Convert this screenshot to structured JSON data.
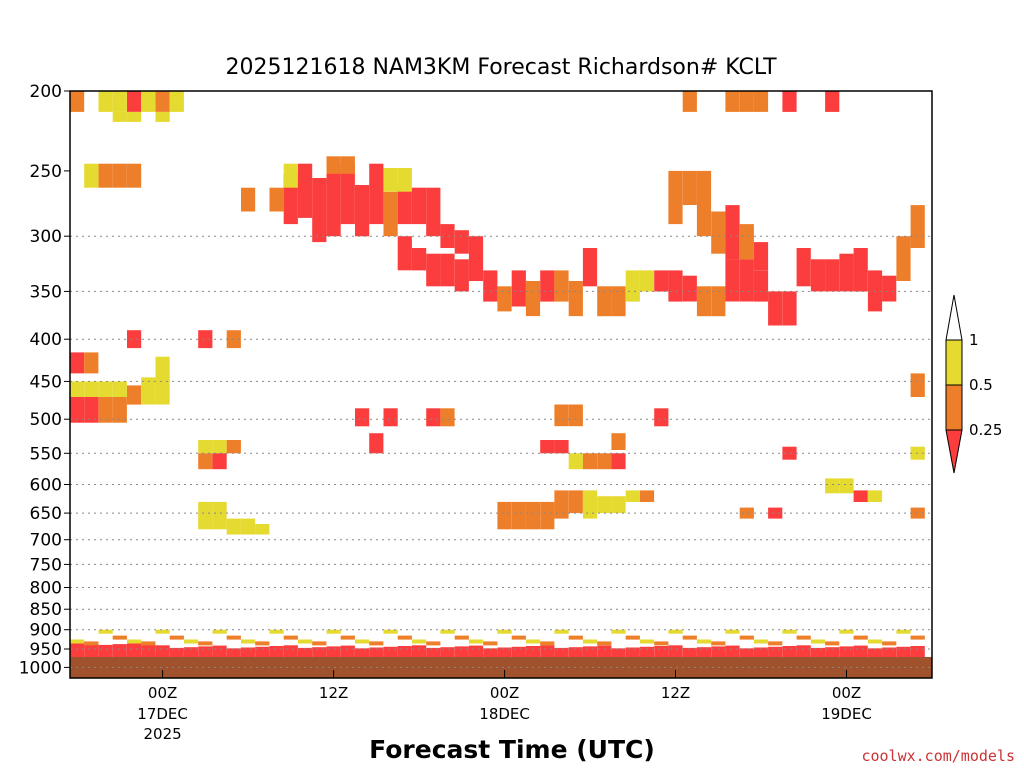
{
  "chart_data": {
    "type": "heatmap",
    "title": "2025121618 NAM3KM Forecast Richardson# KCLT",
    "xlabel": "Forecast Time (UTC)",
    "ylabel": "",
    "credit": "coolwx.com/models",
    "y_scale": "pressure (log), inverted",
    "y_ticks": [
      "200",
      "250",
      "300",
      "350",
      "400",
      "450",
      "500",
      "550",
      "600",
      "650",
      "700",
      "750",
      "800",
      "850",
      "900",
      "950",
      "1000"
    ],
    "y_range": [
      200,
      1030
    ],
    "grid": "dotted horizontal at 300, 350, 400, 450, 500, 550, 600, 650, 700, 750, 800, 850, 900, 950, 1000",
    "x_ticks": [
      {
        "label": "00Z",
        "sub": "17DEC",
        "sub2": "2025"
      },
      {
        "label": "12Z",
        "sub": "",
        "sub2": ""
      },
      {
        "label": "00Z",
        "sub": "18DEC",
        "sub2": ""
      },
      {
        "label": "12Z",
        "sub": "",
        "sub2": ""
      },
      {
        "label": "00Z",
        "sub": "19DEC",
        "sub2": ""
      }
    ],
    "x_range_hours": [
      -6.5,
      54
    ],
    "tick_hours": [
      0,
      12,
      24,
      36,
      48
    ],
    "legend": {
      "position": "right",
      "labels": [
        "1",
        "0.5",
        "0.25"
      ],
      "colors": {
        "above_1": "#ffffff",
        "0.5_to_1": "#e5da30",
        "0.25_to_0.5": "#ee7f2a",
        "below_0.25": "#fb3d3d"
      }
    },
    "colors": {
      "yellow": "#e5da30",
      "orange": "#ee7f2a",
      "red": "#fb3d3d",
      "ground": "#a0522d"
    },
    "cells": [
      {
        "h": -6,
        "p": [
          200,
          212
        ],
        "c": "o"
      },
      {
        "h": -4,
        "p": [
          200,
          212
        ],
        "c": "y"
      },
      {
        "h": -3,
        "p": [
          200,
          212
        ],
        "c": "y"
      },
      {
        "h": -2,
        "p": [
          200,
          212
        ],
        "c": "r"
      },
      {
        "h": -1,
        "p": [
          200,
          212
        ],
        "c": "y"
      },
      {
        "h": 0,
        "p": [
          200,
          212
        ],
        "c": "o"
      },
      {
        "h": 1,
        "p": [
          200,
          212
        ],
        "c": "y"
      },
      {
        "h": -3,
        "p": [
          212,
          218
        ],
        "c": "y"
      },
      {
        "h": -2,
        "p": [
          212,
          218
        ],
        "c": "y"
      },
      {
        "h": 0,
        "p": [
          212,
          218
        ],
        "c": "y"
      },
      {
        "h": -5,
        "p": [
          245,
          262
        ],
        "c": "y"
      },
      {
        "h": -4,
        "p": [
          245,
          262
        ],
        "c": "o"
      },
      {
        "h": -3,
        "p": [
          245,
          262
        ],
        "c": "o"
      },
      {
        "h": -2,
        "p": [
          245,
          262
        ],
        "c": "o"
      },
      {
        "h": 6,
        "p": [
          262,
          280
        ],
        "c": "o"
      },
      {
        "h": 8,
        "p": [
          262,
          280
        ],
        "c": "o"
      },
      {
        "h": 9,
        "p": [
          252,
          290
        ],
        "c": "r"
      },
      {
        "h": 10,
        "p": [
          245,
          285
        ],
        "c": "r"
      },
      {
        "h": 11,
        "p": [
          255,
          305
        ],
        "c": "r"
      },
      {
        "h": 12,
        "p": [
          250,
          300
        ],
        "c": "r"
      },
      {
        "h": 13,
        "p": [
          245,
          290
        ],
        "c": "r"
      },
      {
        "h": 14,
        "p": [
          260,
          300
        ],
        "c": "r"
      },
      {
        "h": 15,
        "p": [
          245,
          290
        ],
        "c": "r"
      },
      {
        "h": 16,
        "p": [
          265,
          300
        ],
        "c": "o"
      },
      {
        "h": 17,
        "p": [
          262,
          290
        ],
        "c": "r"
      },
      {
        "h": 18,
        "p": [
          262,
          290
        ],
        "c": "r"
      },
      {
        "h": 19,
        "p": [
          262,
          300
        ],
        "c": "r"
      },
      {
        "h": 9,
        "p": [
          245,
          262
        ],
        "c": "y"
      },
      {
        "h": 12,
        "p": [
          240,
          252
        ],
        "c": "o"
      },
      {
        "h": 13,
        "p": [
          240,
          252
        ],
        "c": "o"
      },
      {
        "h": 16,
        "p": [
          248,
          265
        ],
        "c": "y"
      },
      {
        "h": 17,
        "p": [
          248,
          265
        ],
        "c": "y"
      },
      {
        "h": 20,
        "p": [
          290,
          310
        ],
        "c": "r"
      },
      {
        "h": 21,
        "p": [
          295,
          315
        ],
        "c": "r"
      },
      {
        "h": 17,
        "p": [
          300,
          330
        ],
        "c": "r"
      },
      {
        "h": 18,
        "p": [
          310,
          330
        ],
        "c": "r"
      },
      {
        "h": 19,
        "p": [
          315,
          345
        ],
        "c": "r"
      },
      {
        "h": 20,
        "p": [
          315,
          345
        ],
        "c": "r"
      },
      {
        "h": 21,
        "p": [
          320,
          350
        ],
        "c": "r"
      },
      {
        "h": 22,
        "p": [
          300,
          340
        ],
        "c": "r"
      },
      {
        "h": 23,
        "p": [
          330,
          360
        ],
        "c": "r"
      },
      {
        "h": 24,
        "p": [
          345,
          370
        ],
        "c": "o"
      },
      {
        "h": 25,
        "p": [
          330,
          365
        ],
        "c": "r"
      },
      {
        "h": 26,
        "p": [
          340,
          375
        ],
        "c": "o"
      },
      {
        "h": 27,
        "p": [
          330,
          360
        ],
        "c": "r"
      },
      {
        "h": 28,
        "p": [
          330,
          360
        ],
        "c": "o"
      },
      {
        "h": 29,
        "p": [
          340,
          375
        ],
        "c": "o"
      },
      {
        "h": 30,
        "p": [
          310,
          345
        ],
        "c": "r"
      },
      {
        "h": 31,
        "p": [
          345,
          375
        ],
        "c": "o"
      },
      {
        "h": 32,
        "p": [
          345,
          375
        ],
        "c": "o"
      },
      {
        "h": 33,
        "p": [
          330,
          360
        ],
        "c": "y"
      },
      {
        "h": 34,
        "p": [
          330,
          350
        ],
        "c": "y"
      },
      {
        "h": 35,
        "p": [
          330,
          350
        ],
        "c": "r"
      },
      {
        "h": 36,
        "p": [
          330,
          360
        ],
        "c": "r"
      },
      {
        "h": 37,
        "p": [
          335,
          360
        ],
        "c": "r"
      },
      {
        "h": 38,
        "p": [
          345,
          375
        ],
        "c": "o"
      },
      {
        "h": 39,
        "p": [
          345,
          375
        ],
        "c": "o"
      },
      {
        "h": 40,
        "p": [
          320,
          360
        ],
        "c": "r"
      },
      {
        "h": 41,
        "p": [
          320,
          360
        ],
        "c": "r"
      },
      {
        "h": 42,
        "p": [
          330,
          360
        ],
        "c": "r"
      },
      {
        "h": 43,
        "p": [
          350,
          385
        ],
        "c": "r"
      },
      {
        "h": 44,
        "p": [
          350,
          385
        ],
        "c": "r"
      },
      {
        "h": 45,
        "p": [
          310,
          345
        ],
        "c": "r"
      },
      {
        "h": 46,
        "p": [
          320,
          350
        ],
        "c": "r"
      },
      {
        "h": 47,
        "p": [
          320,
          350
        ],
        "c": "r"
      },
      {
        "h": 48,
        "p": [
          315,
          350
        ],
        "c": "r"
      },
      {
        "h": 49,
        "p": [
          310,
          350
        ],
        "c": "r"
      },
      {
        "h": 50,
        "p": [
          330,
          370
        ],
        "c": "r"
      },
      {
        "h": 51,
        "p": [
          335,
          360
        ],
        "c": "r"
      },
      {
        "h": 52,
        "p": [
          300,
          340
        ],
        "c": "o"
      },
      {
        "h": 53,
        "p": [
          275,
          310
        ],
        "c": "o"
      },
      {
        "h": 36,
        "p": [
          250,
          290
        ],
        "c": "o"
      },
      {
        "h": 37,
        "p": [
          250,
          275
        ],
        "c": "o"
      },
      {
        "h": 38,
        "p": [
          250,
          300
        ],
        "c": "o"
      },
      {
        "h": 39,
        "p": [
          280,
          315
        ],
        "c": "o"
      },
      {
        "h": 40,
        "p": [
          275,
          320
        ],
        "c": "r"
      },
      {
        "h": 41,
        "p": [
          290,
          320
        ],
        "c": "o"
      },
      {
        "h": 42,
        "p": [
          305,
          330
        ],
        "c": "r"
      },
      {
        "h": 37,
        "p": [
          200,
          212
        ],
        "c": "o"
      },
      {
        "h": 40,
        "p": [
          200,
          212
        ],
        "c": "o"
      },
      {
        "h": 41,
        "p": [
          200,
          212
        ],
        "c": "o"
      },
      {
        "h": 42,
        "p": [
          200,
          212
        ],
        "c": "o"
      },
      {
        "h": 44,
        "p": [
          200,
          212
        ],
        "c": "r"
      },
      {
        "h": 47,
        "p": [
          200,
          212
        ],
        "c": "r"
      },
      {
        "h": -6,
        "p": [
          415,
          440
        ],
        "c": "r"
      },
      {
        "h": -5,
        "p": [
          415,
          440
        ],
        "c": "o"
      },
      {
        "h": -2,
        "p": [
          390,
          410
        ],
        "c": "r"
      },
      {
        "h": 0,
        "p": [
          420,
          450
        ],
        "c": "y"
      },
      {
        "h": 3,
        "p": [
          390,
          410
        ],
        "c": "r"
      },
      {
        "h": 5,
        "p": [
          390,
          410
        ],
        "c": "o"
      },
      {
        "h": -6,
        "p": [
          470,
          505
        ],
        "c": "r"
      },
      {
        "h": -5,
        "p": [
          470,
          505
        ],
        "c": "r"
      },
      {
        "h": -4,
        "p": [
          470,
          505
        ],
        "c": "o"
      },
      {
        "h": -3,
        "p": [
          470,
          505
        ],
        "c": "o"
      },
      {
        "h": -2,
        "p": [
          455,
          480
        ],
        "c": "o"
      },
      {
        "h": -1,
        "p": [
          445,
          480
        ],
        "c": "y"
      },
      {
        "h": 0,
        "p": [
          445,
          480
        ],
        "c": "y"
      },
      {
        "h": -6,
        "p": [
          450,
          470
        ],
        "c": "y"
      },
      {
        "h": -5,
        "p": [
          450,
          470
        ],
        "c": "y"
      },
      {
        "h": -4,
        "p": [
          450,
          470
        ],
        "c": "y"
      },
      {
        "h": -3,
        "p": [
          450,
          470
        ],
        "c": "y"
      },
      {
        "h": 14,
        "p": [
          485,
          510
        ],
        "c": "r"
      },
      {
        "h": 16,
        "p": [
          485,
          510
        ],
        "c": "r"
      },
      {
        "h": 19,
        "p": [
          485,
          510
        ],
        "c": "r"
      },
      {
        "h": 20,
        "p": [
          485,
          510
        ],
        "c": "o"
      },
      {
        "h": 15,
        "p": [
          520,
          550
        ],
        "c": "r"
      },
      {
        "h": 3,
        "p": [
          530,
          550
        ],
        "c": "y"
      },
      {
        "h": 4,
        "p": [
          530,
          550
        ],
        "c": "y"
      },
      {
        "h": 4,
        "p": [
          550,
          575
        ],
        "c": "r"
      },
      {
        "h": 5,
        "p": [
          530,
          550
        ],
        "c": "o"
      },
      {
        "h": 3,
        "p": [
          550,
          575
        ],
        "c": "o"
      },
      {
        "h": 27,
        "p": [
          530,
          550
        ],
        "c": "r"
      },
      {
        "h": 28,
        "p": [
          530,
          550
        ],
        "c": "r"
      },
      {
        "h": 29,
        "p": [
          550,
          575
        ],
        "c": "y"
      },
      {
        "h": 30,
        "p": [
          550,
          575
        ],
        "c": "o"
      },
      {
        "h": 31,
        "p": [
          550,
          575
        ],
        "c": "o"
      },
      {
        "h": 32,
        "p": [
          550,
          575
        ],
        "c": "r"
      },
      {
        "h": 28,
        "p": [
          480,
          510
        ],
        "c": "o"
      },
      {
        "h": 29,
        "p": [
          480,
          510
        ],
        "c": "o"
      },
      {
        "h": 32,
        "p": [
          520,
          545
        ],
        "c": "o"
      },
      {
        "h": 35,
        "p": [
          485,
          510
        ],
        "c": "r"
      },
      {
        "h": 24,
        "p": [
          630,
          680
        ],
        "c": "o"
      },
      {
        "h": 25,
        "p": [
          630,
          680
        ],
        "c": "o"
      },
      {
        "h": 26,
        "p": [
          630,
          680
        ],
        "c": "o"
      },
      {
        "h": 27,
        "p": [
          630,
          680
        ],
        "c": "o"
      },
      {
        "h": 28,
        "p": [
          610,
          660
        ],
        "c": "o"
      },
      {
        "h": 29,
        "p": [
          610,
          650
        ],
        "c": "o"
      },
      {
        "h": 30,
        "p": [
          610,
          660
        ],
        "c": "y"
      },
      {
        "h": 31,
        "p": [
          620,
          650
        ],
        "c": "y"
      },
      {
        "h": 32,
        "p": [
          620,
          650
        ],
        "c": "y"
      },
      {
        "h": 33,
        "p": [
          610,
          630
        ],
        "c": "y"
      },
      {
        "h": 34,
        "p": [
          610,
          630
        ],
        "c": "o"
      },
      {
        "h": 3,
        "p": [
          630,
          680
        ],
        "c": "y"
      },
      {
        "h": 4,
        "p": [
          630,
          680
        ],
        "c": "y"
      },
      {
        "h": 5,
        "p": [
          660,
          690
        ],
        "c": "y"
      },
      {
        "h": 6,
        "p": [
          660,
          690
        ],
        "c": "y"
      },
      {
        "h": 7,
        "p": [
          670,
          690
        ],
        "c": "y"
      },
      {
        "h": 44,
        "p": [
          540,
          560
        ],
        "c": "r"
      },
      {
        "h": 47,
        "p": [
          590,
          615
        ],
        "c": "y"
      },
      {
        "h": 48,
        "p": [
          590,
          615
        ],
        "c": "y"
      },
      {
        "h": 49,
        "p": [
          610,
          630
        ],
        "c": "r"
      },
      {
        "h": 50,
        "p": [
          610,
          630
        ],
        "c": "y"
      },
      {
        "h": 43,
        "p": [
          640,
          660
        ],
        "c": "r"
      },
      {
        "h": 41,
        "p": [
          640,
          660
        ],
        "c": "o"
      },
      {
        "h": 53,
        "p": [
          640,
          660
        ],
        "c": "o"
      },
      {
        "h": 53,
        "p": [
          540,
          560
        ],
        "c": "y"
      },
      {
        "h": 53,
        "p": [
          440,
          470
        ],
        "c": "o"
      }
    ]
  }
}
